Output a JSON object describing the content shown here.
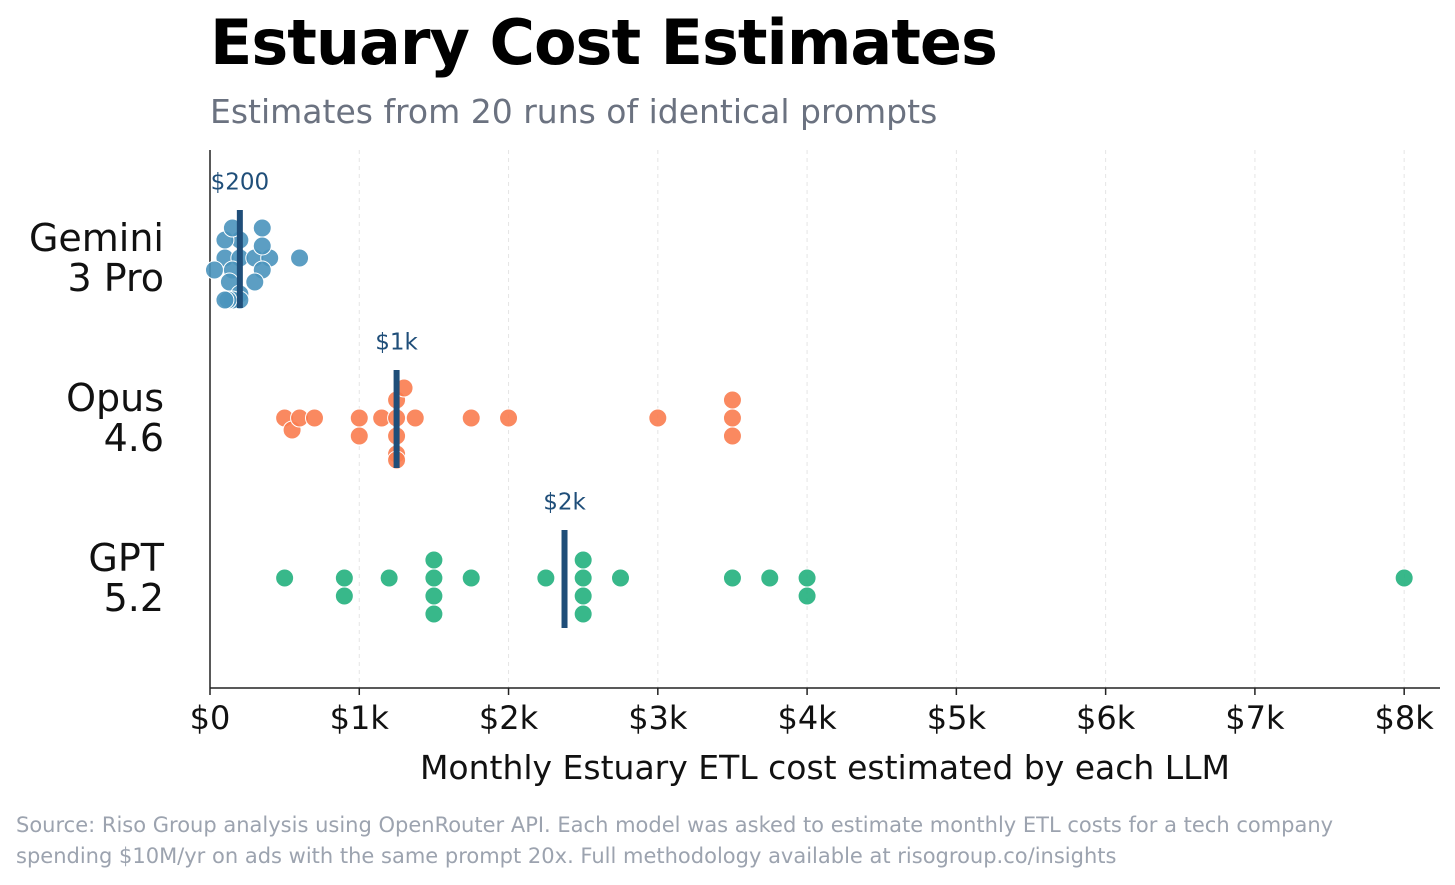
{
  "chart_data": {
    "type": "strip",
    "title": "Estuary Cost Estimates",
    "subtitle": "Estimates from 20 runs of identical prompts",
    "x_label": "Monthly Estuary ETL cost estimated by each LLM",
    "source": "Source: Riso Group analysis using OpenRouter API. Each model was asked to estimate monthly ETL costs for a tech company\nspending $10M/yr on ads with the same prompt 20x. Full methodology available at risogroup.co/insights",
    "xlim": [
      0,
      8240
    ],
    "xticks": [
      {
        "value": 0,
        "label": "$0"
      },
      {
        "value": 1000,
        "label": "$1k"
      },
      {
        "value": 2000,
        "label": "$2k"
      },
      {
        "value": 3000,
        "label": "$3k"
      },
      {
        "value": 4000,
        "label": "$4k"
      },
      {
        "value": 5000,
        "label": "$5k"
      },
      {
        "value": 6000,
        "label": "$6k"
      },
      {
        "value": 7000,
        "label": "$7k"
      },
      {
        "value": 8000,
        "label": "$8k"
      }
    ],
    "grid": true,
    "median_color": "#1f4e79",
    "series": [
      {
        "name": "Gemini\n3 Pro",
        "color": "#4a94bd",
        "values": [
          100,
          200,
          300,
          400,
          600,
          30,
          150,
          200,
          350,
          350,
          130,
          100,
          150,
          300,
          350,
          200,
          200,
          150,
          120,
          100
        ],
        "median": 200,
        "median_label": "$200"
      },
      {
        "name": "Opus\n4.6",
        "color": "#f97c4f",
        "values": [
          500,
          550,
          600,
          700,
          1000,
          1000,
          1150,
          1250,
          1250,
          1250,
          1250,
          1300,
          1375,
          1750,
          2000,
          3000,
          3500,
          3500,
          3500,
          1250
        ],
        "median": 1250,
        "median_label": "$1k"
      },
      {
        "name": "GPT\n5.2",
        "color": "#22b07d",
        "values": [
          500,
          900,
          900,
          1200,
          1500,
          1500,
          1500,
          1500,
          1750,
          2250,
          2500,
          2500,
          2500,
          2500,
          2750,
          3500,
          3750,
          4000,
          4000,
          8000
        ],
        "median": 2375,
        "median_label": "$2k"
      }
    ]
  }
}
